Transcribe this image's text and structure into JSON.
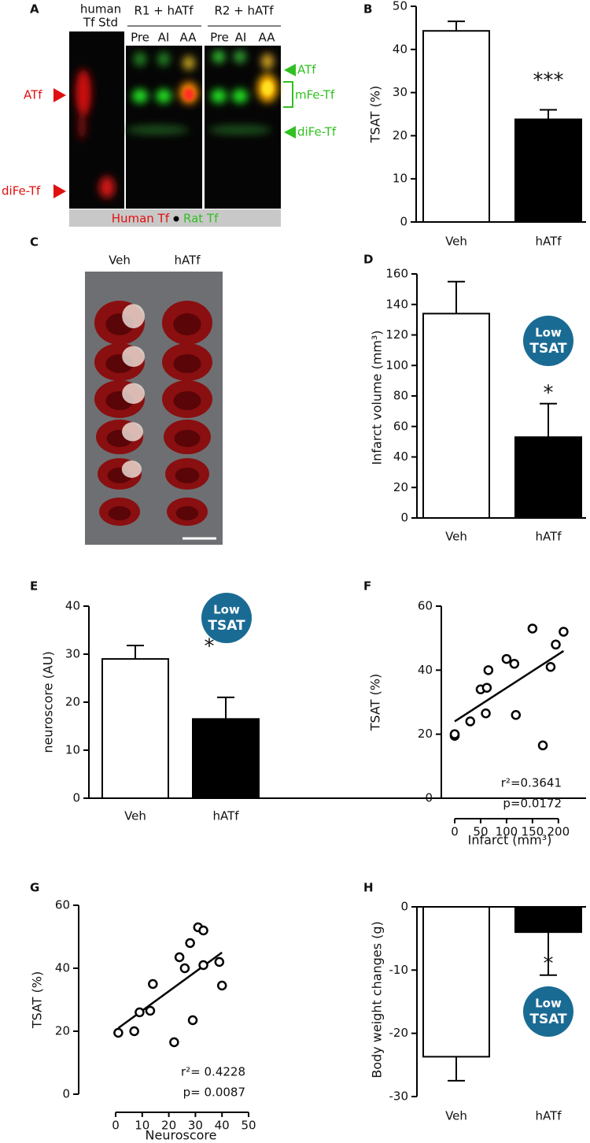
{
  "panel_a": {
    "label": "A",
    "lane_headers": [
      "human",
      "Tf Std"
    ],
    "groups": [
      {
        "name": "R1 + hATf",
        "lanes": [
          "Pre",
          "AI",
          "AA"
        ]
      },
      {
        "name": "R2 + hATf",
        "lanes": [
          "Pre",
          "AI",
          "AA"
        ]
      }
    ],
    "left_markers": [
      "ATf",
      "diFe-Tf"
    ],
    "right_markers": [
      "ATf",
      "mFe-Tf",
      "diFe-Tf"
    ],
    "legend": [
      "Human Tf",
      "Rat Tf"
    ]
  },
  "panel_c": {
    "label": "C",
    "columns": [
      "Veh",
      "hATf"
    ]
  },
  "chart_data": [
    {
      "panel_label": "B",
      "type": "bar",
      "y_label": "TSAT (%)",
      "categories": [
        "Veh",
        "hATf"
      ],
      "values": [
        44.3,
        23.8
      ],
      "errors": [
        2.2,
        2.2
      ],
      "colors": [
        "#ffffff",
        "#000000"
      ],
      "ylim": [
        0,
        50
      ],
      "yticks": [
        0,
        10,
        20,
        30,
        40,
        50
      ],
      "annotation": "***"
    },
    {
      "panel_label": "D",
      "type": "bar",
      "y_label": "Infarct volume (mm³)",
      "categories": [
        "Veh",
        "hATf"
      ],
      "values": [
        134,
        53
      ],
      "errors": [
        21,
        22
      ],
      "colors": [
        "#ffffff",
        "#000000"
      ],
      "ylim": [
        0,
        160
      ],
      "yticks": [
        0,
        20,
        40,
        60,
        80,
        100,
        120,
        140,
        160
      ],
      "annotation": "*",
      "badge": [
        "Low",
        "TSAT"
      ]
    },
    {
      "panel_label": "E",
      "type": "bar",
      "y_label": "neuroscore (AU)",
      "categories": [
        "Veh",
        "hATf"
      ],
      "values": [
        29,
        16.5
      ],
      "errors": [
        2.8,
        4.5
      ],
      "colors": [
        "#ffffff",
        "#000000"
      ],
      "ylim": [
        0,
        40
      ],
      "yticks": [
        0,
        10,
        20,
        30,
        40
      ],
      "annotation": "*",
      "badge": [
        "Low",
        "TSAT"
      ]
    },
    {
      "panel_label": "F",
      "type": "scatter",
      "x_label": "Infarct (mm³)",
      "y_label": "TSAT (%)",
      "x": [
        0,
        0,
        30,
        50,
        60,
        62,
        65,
        100,
        115,
        118,
        150,
        170,
        185,
        195,
        210
      ],
      "y": [
        19.5,
        20,
        24,
        34,
        26.5,
        34.5,
        40,
        43.5,
        42,
        26,
        53,
        16.5,
        41,
        48,
        52
      ],
      "fit": {
        "x": [
          0,
          210
        ],
        "y": [
          24,
          46
        ]
      },
      "xlim": [
        0,
        220
      ],
      "xticks": [
        0,
        50,
        100,
        150,
        200
      ],
      "ylim": [
        0,
        60
      ],
      "yticks": [
        0,
        20,
        40,
        60
      ],
      "stats": [
        "r²=0.3641",
        "p=0.0172"
      ]
    },
    {
      "panel_label": "G",
      "type": "scatter",
      "x_label": "Neuroscore",
      "y_label": "TSAT  (%)",
      "x": [
        1,
        7,
        9,
        13,
        14,
        22,
        24,
        26,
        28,
        29,
        31,
        33,
        33,
        39,
        40
      ],
      "y": [
        19.5,
        20,
        26,
        26.5,
        35,
        16.5,
        43.5,
        40,
        48,
        23.5,
        53,
        52,
        41,
        42,
        34.5
      ],
      "fit": {
        "x": [
          1,
          40
        ],
        "y": [
          21,
          45
        ]
      },
      "xlim": [
        0,
        50
      ],
      "xticks": [
        0,
        10,
        20,
        30,
        40,
        50
      ],
      "ylim": [
        0,
        60
      ],
      "yticks": [
        0,
        20,
        40,
        60
      ],
      "stats": [
        "r²= 0.4228",
        "p= 0.0087"
      ]
    },
    {
      "panel_label": "H",
      "type": "bar",
      "y_label": "Body weight changes (g)",
      "categories": [
        "Veh",
        "hATf"
      ],
      "values": [
        -23.7,
        -4
      ],
      "errors": [
        3.8,
        6.8
      ],
      "colors": [
        "#ffffff",
        "#000000"
      ],
      "ylim": [
        -30,
        0
      ],
      "yticks": [
        -30,
        -20,
        -10,
        0
      ],
      "annotation": "*",
      "badge": [
        "Low",
        "TSAT"
      ]
    }
  ]
}
